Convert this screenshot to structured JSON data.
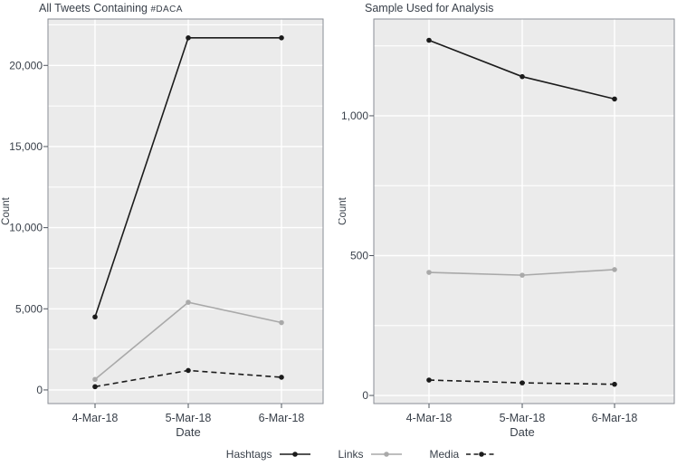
{
  "figure": {
    "background": "#ffffff"
  },
  "colors": {
    "plot_background": "#ebebeb",
    "gridline": "#ffffff",
    "axis_border": "#8a8e94",
    "tick": "#4d545e",
    "text": "#39404a",
    "hashtags_line": "#1b1b1b",
    "links_line": "#a9a9a9",
    "media_line": "#1b1b1b"
  },
  "legend": {
    "items": [
      {
        "label": "Hashtags",
        "color": "#1b1b1b",
        "dash": "",
        "marker": "dot"
      },
      {
        "label": "Links",
        "color": "#a9a9a9",
        "dash": "",
        "marker": "dot"
      },
      {
        "label": "Media",
        "color": "#1b1b1b",
        "dash": "5 3.5",
        "marker": "dot"
      }
    ]
  },
  "chart_data": [
    {
      "type": "line",
      "title": "All Tweets Containing #DACA",
      "title_main": "All Tweets Containing ",
      "title_tag": "#DACA",
      "xlabel": "Date",
      "ylabel": "Count",
      "categories": [
        "4-Mar-18",
        "5-Mar-18",
        "6-Mar-18"
      ],
      "series": [
        {
          "name": "Hashtags",
          "values": [
            4500,
            21700,
            21700
          ]
        },
        {
          "name": "Links",
          "values": [
            650,
            5400,
            4150
          ]
        },
        {
          "name": "Media",
          "values": [
            200,
            1200,
            780
          ]
        }
      ],
      "ylim": [
        -840,
        22860
      ],
      "yticks": [
        0,
        5000,
        10000,
        15000,
        20000
      ],
      "ytick_labels": [
        "0",
        "5,000",
        "10,000",
        "15,000",
        "20,000"
      ],
      "yticks_minor": [
        2500,
        7500,
        12500,
        17500,
        22500
      ],
      "grid": true,
      "legend_position": "bottom"
    },
    {
      "type": "line",
      "title": "Sample Used for Analysis",
      "title_main": "Sample Used for Analysis",
      "title_tag": "",
      "xlabel": "Date",
      "ylabel": "Count",
      "categories": [
        "4-Mar-18",
        "5-Mar-18",
        "6-Mar-18"
      ],
      "series": [
        {
          "name": "Hashtags",
          "values": [
            1270,
            1140,
            1060
          ]
        },
        {
          "name": "Links",
          "values": [
            440,
            430,
            450
          ]
        },
        {
          "name": "Media",
          "values": [
            55,
            45,
            40
          ]
        }
      ],
      "ylim": [
        -29,
        1346
      ],
      "yticks": [
        0,
        500,
        1000
      ],
      "ytick_labels": [
        "0",
        "500",
        "1,000"
      ],
      "yticks_minor": [
        250,
        750,
        1250
      ],
      "grid": true,
      "legend_position": "bottom"
    }
  ]
}
